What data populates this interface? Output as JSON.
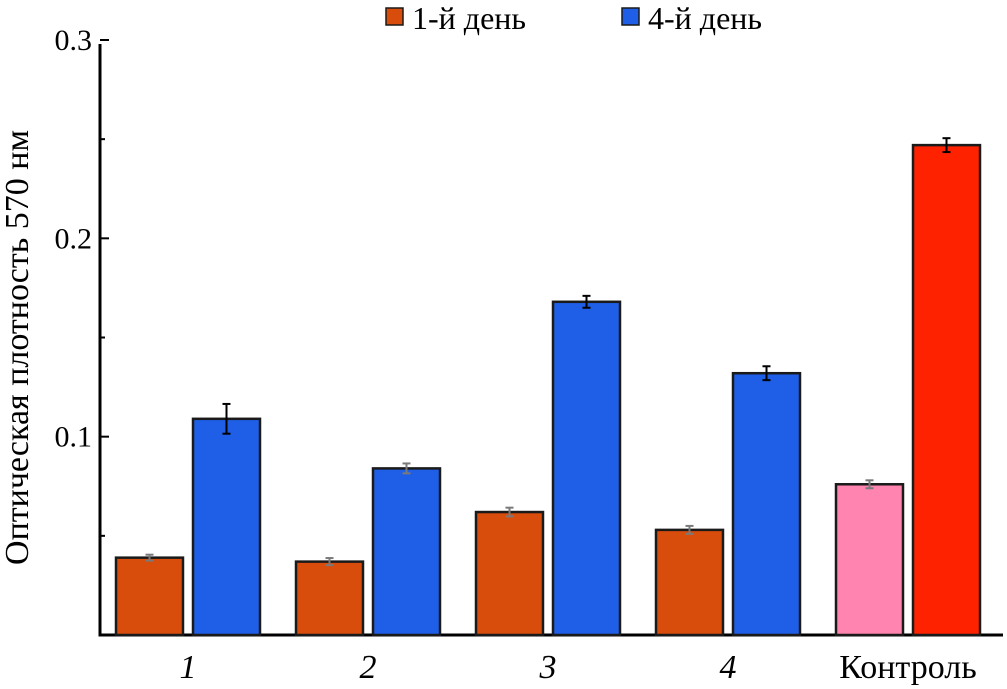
{
  "chart_data": {
    "type": "bar",
    "ylabel": "Оптическая плотность 570 нм",
    "xlabel": "",
    "ylim": [
      0,
      0.3
    ],
    "yticks": [
      {
        "value": 0.1,
        "label": "0.1"
      },
      {
        "value": 0.2,
        "label": "0.2"
      },
      {
        "value": 0.3,
        "label": "0.3"
      }
    ],
    "categories": [
      "1",
      "2",
      "3",
      "4",
      "Контроль"
    ],
    "categories_italic": [
      true,
      true,
      true,
      true,
      false
    ],
    "series": [
      {
        "name": "1-й день",
        "color": "#d84c0c",
        "values": [
          0.039,
          0.037,
          0.062,
          0.053,
          null
        ],
        "errors": [
          0.0015,
          0.0018,
          0.0022,
          0.002,
          null
        ]
      },
      {
        "name": "4-й день",
        "color": "#1f5ee6",
        "values": [
          0.109,
          0.084,
          0.168,
          0.132,
          0.247
        ],
        "errors": [
          0.0075,
          0.0025,
          0.003,
          0.0035,
          0.0035
        ]
      }
    ],
    "control_bars": [
      {
        "value": 0.076,
        "error": 0.002,
        "color": "#ff85b0"
      },
      {
        "value": 0.247,
        "error": 0.0035,
        "color": "#ff2200"
      }
    ],
    "legend": [
      {
        "label": "1-й день",
        "color": "#d84c0c"
      },
      {
        "label": "4-й день",
        "color": "#1f5ee6"
      }
    ],
    "legend_placement": "top-center",
    "grid": false
  }
}
